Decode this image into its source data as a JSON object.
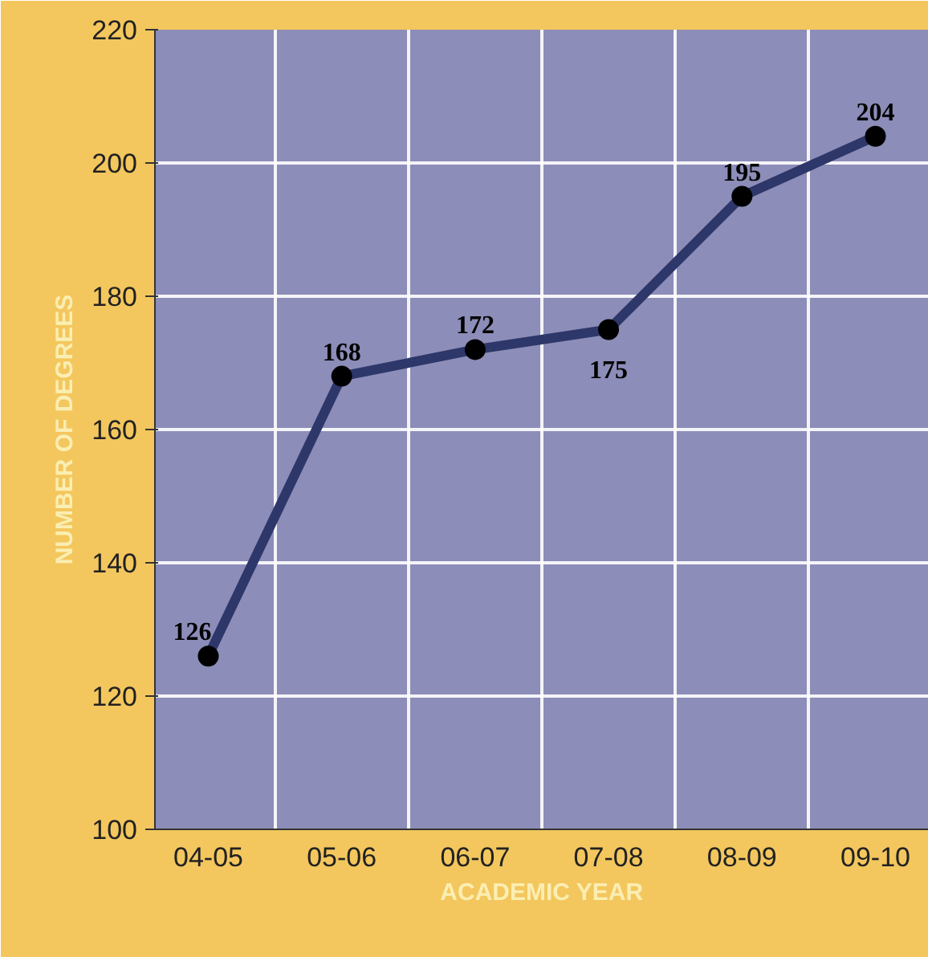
{
  "chart_data": {
    "type": "line",
    "xlabel": "ACADEMIC YEAR",
    "ylabel": "NUMBER OF DEGREES",
    "categories": [
      "04-05",
      "05-06",
      "06-07",
      "07-08",
      "08-09",
      "09-10"
    ],
    "series": [
      {
        "color": "#2e3769",
        "values": [
          126,
          168,
          172,
          175,
          195,
          204
        ]
      }
    ],
    "ylim": [
      100,
      220
    ],
    "yticks": [
      100,
      120,
      140,
      160,
      180,
      200,
      220
    ],
    "grid": true,
    "marker": "circle",
    "line_style": "solid",
    "data_labels": true
  }
}
